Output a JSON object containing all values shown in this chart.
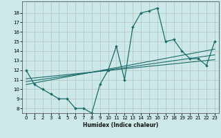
{
  "bg_color": "#cce8e8",
  "grid_color": "#b8c8c8",
  "line_color": "#1a6b6b",
  "xlabel": "Humidex (Indice chaleur)",
  "xlim": [
    -0.5,
    23.5
  ],
  "ylim": [
    7.5,
    19.2
  ],
  "xticks": [
    0,
    1,
    2,
    3,
    4,
    5,
    6,
    7,
    8,
    9,
    10,
    11,
    12,
    13,
    14,
    15,
    16,
    17,
    18,
    19,
    20,
    21,
    22,
    23
  ],
  "yticks": [
    8,
    9,
    10,
    11,
    12,
    13,
    14,
    15,
    16,
    17,
    18
  ],
  "curve1_x": [
    0,
    1,
    2,
    3,
    4,
    5,
    6,
    7,
    8,
    9,
    10,
    11,
    12,
    13,
    14,
    15,
    16,
    17,
    18,
    19,
    20,
    21,
    22,
    23
  ],
  "curve1_y": [
    12.0,
    10.5,
    10.0,
    9.5,
    9.0,
    9.0,
    8.0,
    8.0,
    7.5,
    10.5,
    12.0,
    14.5,
    11.0,
    16.5,
    18.0,
    18.2,
    18.5,
    15.0,
    15.2,
    14.0,
    13.2,
    13.2,
    12.5,
    15.0
  ],
  "line1_x": [
    0,
    23
  ],
  "line1_y": [
    10.5,
    14.2
  ],
  "line2_x": [
    0,
    23
  ],
  "line2_y": [
    10.8,
    13.6
  ],
  "line3_x": [
    0,
    23
  ],
  "line3_y": [
    11.1,
    13.1
  ]
}
